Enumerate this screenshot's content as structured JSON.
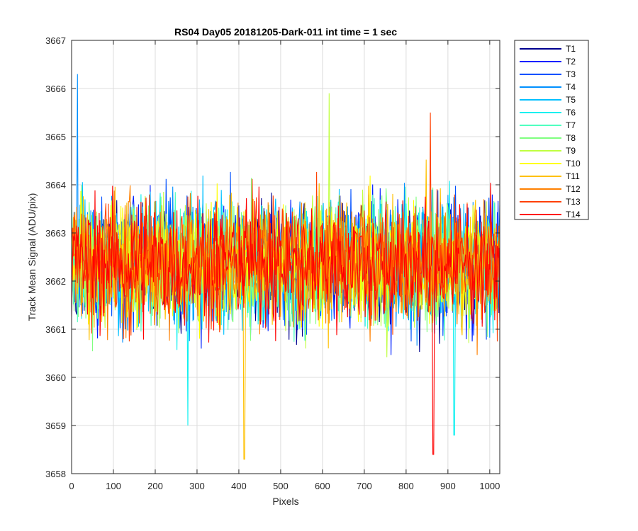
{
  "chart_data": {
    "type": "line",
    "title": "RS04 Day05 20181205-Dark-011 int time = 1 sec",
    "xlabel": "Pixels",
    "ylabel": "Track Mean Signal (ADU/pix)",
    "xlim": [
      0,
      1024
    ],
    "ylim": [
      3658,
      3667
    ],
    "xticks": [
      0,
      100,
      200,
      300,
      400,
      500,
      600,
      700,
      800,
      900,
      1000
    ],
    "yticks": [
      3658,
      3659,
      3660,
      3661,
      3662,
      3663,
      3664,
      3665,
      3666,
      3667
    ],
    "grid": true,
    "legend_position": "outside-top-right",
    "series_mean": 3662.4,
    "series_amplitude": 1.3,
    "series": [
      {
        "name": "T1",
        "color": "#00008f"
      },
      {
        "name": "T2",
        "color": "#0020ff"
      },
      {
        "name": "T3",
        "color": "#0050ff"
      },
      {
        "name": "T4",
        "color": "#0090ff"
      },
      {
        "name": "T5",
        "color": "#00c0ff"
      },
      {
        "name": "T6",
        "color": "#10f0f0"
      },
      {
        "name": "T7",
        "color": "#50ffc0"
      },
      {
        "name": "T8",
        "color": "#80ff80"
      },
      {
        "name": "T9",
        "color": "#c0ff40"
      },
      {
        "name": "T10",
        "color": "#ffff00"
      },
      {
        "name": "T11",
        "color": "#ffc000"
      },
      {
        "name": "T12",
        "color": "#ff8000"
      },
      {
        "name": "T13",
        "color": "#ff4000"
      },
      {
        "name": "T14",
        "color": "#ff0000"
      }
    ],
    "notable_points": [
      {
        "series": "T4",
        "x": 14,
        "y": 3666.3
      },
      {
        "series": "T11",
        "x": 413,
        "y": 3658.3
      },
      {
        "series": "T14",
        "x": 865,
        "y": 3658.4
      },
      {
        "series": "T6",
        "x": 915,
        "y": 3658.8
      },
      {
        "series": "T6",
        "x": 278,
        "y": 3659.0
      },
      {
        "series": "T9",
        "x": 616,
        "y": 3665.9
      },
      {
        "series": "T13",
        "x": 858,
        "y": 3665.5
      }
    ]
  }
}
